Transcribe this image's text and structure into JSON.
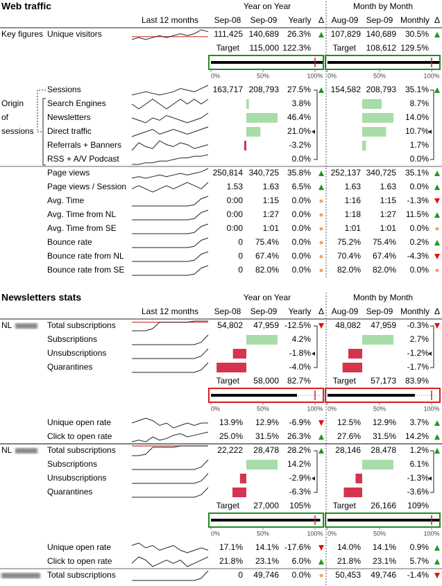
{
  "rows": [
    {
      "kind": "title",
      "title": "Web traffic",
      "yoy": "Year on Year",
      "mom": "Month by Month"
    },
    {
      "kind": "header",
      "spark": "Last 12 months",
      "cols": [
        "Sep-08",
        "Sep-09",
        "Yearly",
        "Δ",
        "Aug-09",
        "Sep-09",
        "Monthly",
        "Δ"
      ]
    },
    {
      "kind": "metric",
      "group": "Key figures",
      "label": "Unique visitors",
      "spark": [
        4,
        5,
        4,
        5,
        6,
        5,
        6,
        7,
        6,
        7,
        9,
        8
      ],
      "spark_ref": 5.5,
      "cells": [
        "111,425",
        "140,689",
        "26.3%",
        "107,829",
        "140,689",
        "30.5%"
      ],
      "trend": [
        "up",
        "up"
      ]
    },
    {
      "kind": "target",
      "cells": [
        "Target",
        "115,000",
        "122.3%",
        "Target",
        "108,612",
        "129.5%"
      ]
    },
    {
      "kind": "progress",
      "color": "#1e8c1e",
      "ticks": [
        {
          "value": 0,
          "label": "0%"
        },
        {
          "value": 50,
          "label": "50%"
        },
        {
          "value": 100,
          "label": "100%"
        }
      ]
    },
    {
      "kind": "metric",
      "label": "Sessions",
      "spark": [
        3,
        4,
        5,
        4,
        3,
        4,
        5,
        7,
        6,
        5,
        7,
        9
      ],
      "cells": [
        "163,717",
        "208,793",
        "27.5%",
        "154,582",
        "208,793",
        "35.1%"
      ],
      "trend": [
        "up",
        "up"
      ]
    },
    {
      "kind": "component",
      "group": "Origin",
      "label": "Search Engines",
      "spark": [
        5,
        4,
        5,
        6,
        5,
        4,
        5,
        6,
        5,
        6,
        5,
        6
      ],
      "cells": [
        "3.8%",
        "8.7%"
      ]
    },
    {
      "kind": "component",
      "group": "of",
      "label": "Newsletters",
      "spark": [
        5,
        4,
        3,
        5,
        4,
        6,
        5,
        4,
        3,
        4,
        5,
        7
      ],
      "cells": [
        "46.4%",
        "14.0%"
      ]
    },
    {
      "kind": "component",
      "group": "sessions",
      "label": "Direct traffic",
      "spark": [
        3,
        4,
        5,
        6,
        4,
        5,
        6,
        5,
        4,
        5,
        6,
        7
      ],
      "cells": [
        "21.0%",
        "10.7%"
      ]
    },
    {
      "kind": "component",
      "label": "Referrals + Banners",
      "spark": [
        2,
        6,
        4,
        3,
        7,
        5,
        4,
        6,
        5,
        3,
        4,
        5
      ],
      "cells": [
        "-3.2%",
        "1.7%"
      ]
    },
    {
      "kind": "component",
      "label": "RSS + A/V Podcast",
      "spark": [
        2,
        2,
        3,
        3,
        4,
        4,
        5,
        6,
        6,
        7,
        7,
        8
      ],
      "cells": [
        "0.0%",
        "0.0%"
      ]
    },
    {
      "kind": "metric",
      "label": "Page views",
      "spark": [
        3,
        4,
        3,
        4,
        5,
        4,
        5,
        6,
        5,
        6,
        7,
        9
      ],
      "cells": [
        "250,814",
        "340,725",
        "35.8%",
        "252,137",
        "340,725",
        "35.1%"
      ],
      "trend": [
        "up",
        "up"
      ]
    },
    {
      "kind": "metric",
      "label": "Page views / Session",
      "spark": [
        4,
        5,
        4,
        3,
        4,
        5,
        4,
        5,
        6,
        5,
        4,
        6
      ],
      "cells": [
        "1.53",
        "1.63",
        "6.5%",
        "1.63",
        "1.63",
        "0.0%"
      ],
      "trend": [
        "up",
        "up"
      ]
    },
    {
      "kind": "metric",
      "label": "Avg. Time",
      "spark": [
        0,
        0,
        0,
        0,
        0,
        0,
        0,
        0,
        0,
        1,
        6,
        8
      ],
      "cells": [
        "0:00",
        "1:15",
        "0.0%",
        "1:16",
        "1:15",
        "-1.3%"
      ],
      "trend": [
        "flat",
        "down"
      ]
    },
    {
      "kind": "metric",
      "label": "Avg. Time from NL",
      "spark": [
        0,
        0,
        0,
        0,
        0,
        0,
        0,
        0,
        0,
        1,
        6,
        8
      ],
      "cells": [
        "0:00",
        "1:27",
        "0.0%",
        "1:18",
        "1:27",
        "11.5%"
      ],
      "trend": [
        "flat",
        "up"
      ]
    },
    {
      "kind": "metric",
      "label": "Avg. Time from SE",
      "spark": [
        0,
        0,
        0,
        0,
        0,
        0,
        0,
        0,
        0,
        1,
        6,
        8
      ],
      "cells": [
        "0:00",
        "1:01",
        "0.0%",
        "1:01",
        "1:01",
        "0.0%"
      ],
      "trend": [
        "flat",
        "flat"
      ]
    },
    {
      "kind": "metric",
      "label": "Bounce rate",
      "spark": [
        0,
        0,
        0,
        0,
        0,
        0,
        0,
        0,
        0,
        1,
        6,
        8
      ],
      "cells": [
        "0",
        "75.4%",
        "0.0%",
        "75.2%",
        "75.4%",
        "0.2%"
      ],
      "trend": [
        "flat",
        "up"
      ]
    },
    {
      "kind": "metric",
      "label": "Bounce rate from NL",
      "spark": [
        0,
        0,
        0,
        0,
        0,
        0,
        0,
        0,
        0,
        1,
        6,
        8
      ],
      "cells": [
        "0",
        "67.4%",
        "0.0%",
        "70.4%",
        "67.4%",
        "-4.3%"
      ],
      "trend": [
        "flat",
        "down"
      ]
    },
    {
      "kind": "metric",
      "label": "Bounce rate from SE",
      "spark": [
        0,
        0,
        0,
        0,
        0,
        0,
        0,
        0,
        0,
        1,
        6,
        8
      ],
      "cells": [
        "0",
        "82.0%",
        "0.0%",
        "82.0%",
        "82.0%",
        "0.0%"
      ],
      "trend": [
        "flat",
        "flat"
      ]
    },
    {
      "kind": "title",
      "title": "Newsletters stats",
      "yoy": "Year on Year",
      "mom": "Month by Month"
    },
    {
      "kind": "header",
      "spark": "Last 12 months",
      "cols": [
        "Sep-08",
        "Sep-09",
        "Yearly",
        "Δ",
        "Aug-09",
        "Sep-09",
        "Monthly",
        "Δ"
      ]
    },
    {
      "kind": "metric",
      "group": "NL",
      "blur": true,
      "label": "Total subscriptions",
      "spark": [
        0,
        0,
        0,
        2,
        8,
        8,
        8,
        8,
        8,
        9,
        9,
        9
      ],
      "spark_ref": 8,
      "cells": [
        "54,802",
        "47,959",
        "-12.5%",
        "48,082",
        "47,959",
        "-0.3%"
      ],
      "trend": [
        "down",
        "down"
      ]
    },
    {
      "kind": "component",
      "label": "Subscriptions",
      "spark": [
        0,
        0,
        0,
        0,
        0,
        0,
        0,
        0,
        0,
        0,
        2,
        8
      ],
      "cells": [
        "4.2%",
        "2.7%"
      ]
    },
    {
      "kind": "component",
      "label": "Unsubscriptions",
      "spark": [
        0,
        0,
        0,
        0,
        0,
        0,
        0,
        0,
        0,
        0,
        2,
        8
      ],
      "cells": [
        "-1.8%",
        "-1.2%"
      ]
    },
    {
      "kind": "component",
      "label": "Quarantines",
      "spark": [
        0,
        0,
        0,
        0,
        0,
        0,
        0,
        0,
        0,
        0,
        2,
        8
      ],
      "cells": [
        "-4.0%",
        "-1.7%"
      ]
    },
    {
      "kind": "target",
      "cells": [
        "Target",
        "58,000",
        "82.7%",
        "Target",
        "57,173",
        "83.9%"
      ]
    },
    {
      "kind": "progress",
      "color": "#d42020",
      "ticks": [
        {
          "value": 0,
          "label": "0%"
        },
        {
          "value": 50,
          "label": "50%"
        },
        {
          "value": 100,
          "label": "100%"
        }
      ]
    },
    {
      "kind": "metric",
      "label": "Unique open rate",
      "spark": [
        5,
        6,
        7,
        6,
        4,
        5,
        3,
        4,
        5,
        4,
        5,
        5
      ],
      "cells": [
        "13.9%",
        "12.9%",
        "-6.9%",
        "12.5%",
        "12.9%",
        "3.7%"
      ],
      "trend": [
        "down",
        "up"
      ]
    },
    {
      "kind": "metric",
      "label": "Click to open rate",
      "spark": [
        3,
        4,
        3,
        6,
        4,
        5,
        7,
        8,
        6,
        7,
        8,
        9
      ],
      "cells": [
        "25.0%",
        "31.5%",
        "26.3%",
        "27.6%",
        "31.5%",
        "14.2%"
      ],
      "trend": [
        "up",
        "up"
      ]
    },
    {
      "kind": "metric",
      "group": "NL",
      "blur": true,
      "label": "Total subscriptions",
      "spark": [
        2,
        2,
        3,
        8,
        8,
        8,
        8,
        9,
        9,
        9,
        9,
        9
      ],
      "spark_ref": 9,
      "cells": [
        "22,222",
        "28,478",
        "28.2%",
        "28,146",
        "28,478",
        "1.2%"
      ],
      "trend": [
        "up",
        "up"
      ]
    },
    {
      "kind": "component",
      "label": "Subscriptions",
      "spark": [
        0,
        0,
        0,
        0,
        0,
        0,
        0,
        0,
        0,
        0,
        2,
        8
      ],
      "cells": [
        "14.2%",
        "6.1%"
      ]
    },
    {
      "kind": "component",
      "label": "Unsubscriptions",
      "spark": [
        0,
        0,
        0,
        0,
        0,
        0,
        0,
        0,
        0,
        0,
        2,
        8
      ],
      "cells": [
        "-2.9%",
        "-1.3%"
      ]
    },
    {
      "kind": "component",
      "label": "Quarantines",
      "spark": [
        0,
        0,
        0,
        0,
        0,
        0,
        0,
        0,
        0,
        0,
        2,
        8
      ],
      "cells": [
        "-6.3%",
        "-3.6%"
      ]
    },
    {
      "kind": "target",
      "cells": [
        "Target",
        "27,000",
        "105%",
        "Target",
        "26,166",
        "109%"
      ]
    },
    {
      "kind": "progress",
      "color": "#1e8c1e",
      "ticks": [
        {
          "value": 0,
          "label": "0%"
        },
        {
          "value": 50,
          "label": "50%"
        },
        {
          "value": 100,
          "label": "100%"
        }
      ]
    },
    {
      "kind": "metric",
      "label": "Unique open rate",
      "spark": [
        6,
        7,
        5,
        6,
        4,
        5,
        6,
        4,
        3,
        4,
        5,
        4
      ],
      "cells": [
        "17.1%",
        "14.1%",
        "-17.6%",
        "14.0%",
        "14.1%",
        "0.9%"
      ],
      "trend": [
        "down",
        "up"
      ]
    },
    {
      "kind": "metric",
      "label": "Click to open rate",
      "spark": [
        5,
        7,
        6,
        4,
        5,
        6,
        5,
        6,
        4,
        5,
        6,
        7
      ],
      "cells": [
        "21.8%",
        "23.1%",
        "6.0%",
        "21.8%",
        "23.1%",
        "5.7%"
      ],
      "trend": [
        "up",
        "up"
      ]
    },
    {
      "kind": "metric",
      "blur": true,
      "label": "Total subscriptions",
      "spark": [
        0,
        0,
        0,
        0,
        0,
        0,
        0,
        0,
        0,
        0,
        2,
        9
      ],
      "cells": [
        "0",
        "49,746",
        "0.0%",
        "50,453",
        "49,746",
        "-1.4%"
      ],
      "trend": [
        "flat",
        "down"
      ]
    }
  ]
}
